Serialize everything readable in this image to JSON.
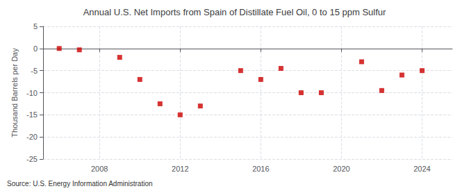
{
  "chart_data": {
    "type": "scatter",
    "title": "Annual U.S. Net Imports from Spain of Distillate Fuel Oil, 0 to 15 ppm Sulfur",
    "ylabel": "Thousand Barrels per Day",
    "annotation": "Source: U.S. Energy Information Administration",
    "x": [
      2006,
      2007,
      2009,
      2010,
      2011,
      2012,
      2013,
      2015,
      2016,
      2017,
      2018,
      2019,
      2021,
      2022,
      2023,
      2024
    ],
    "values": [
      0.0,
      -0.3,
      -2.0,
      -7.0,
      -12.5,
      -15.0,
      -13.0,
      -5.0,
      -7.0,
      -4.5,
      -10.0,
      -10.0,
      -3.0,
      -9.5,
      -6.0,
      -5.0
    ],
    "xlim": [
      2005.2,
      2025.5
    ],
    "xticks": [
      2008,
      2012,
      2016,
      2020,
      2024
    ],
    "ylim": [
      -25,
      5
    ],
    "yticks": [
      -25,
      -20,
      -15,
      -10,
      -5,
      0,
      5
    ],
    "color": "#cc0000",
    "marker": "square",
    "grid": true
  }
}
